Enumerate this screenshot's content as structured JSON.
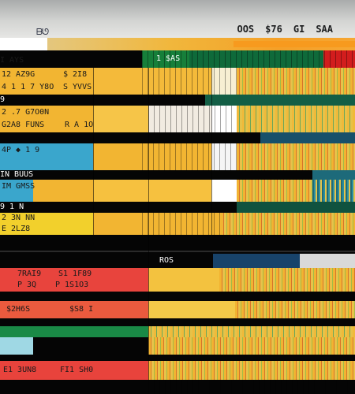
{
  "header": {
    "logo": "ᗷᘎ",
    "labels": [
      "OOS",
      "$76",
      "GI",
      "SAA"
    ]
  },
  "rows": [
    {
      "a": "1 $AS"
    },
    {
      "a": "I AYS"
    },
    {
      "a": "12 AZ9G",
      "b": "$ 2I8"
    },
    {
      "a": "4 1 1 7 Y8O",
      "b": "S YVVS"
    },
    {
      "a": "9"
    },
    {
      "a": "2 .7 G7O0N"
    },
    {
      "a": "G2A8 FUNS",
      "b": "R A 1O"
    },
    {
      "a": "4P  ◆ 1 9"
    },
    {
      "a": "IN  BUUS"
    },
    {
      "a": "IM  GMSS"
    },
    {
      "a": "9 1 N"
    },
    {
      "a": "2 3N NN"
    },
    {
      "a": "E 2LZ8"
    },
    {
      "a": "ROS"
    },
    {
      "a": "7RAI9",
      "b": "S1 1F89"
    },
    {
      "a": "P 3Q",
      "b": "P 1S1O3"
    },
    {
      "a": "$2H6S",
      "b": "$S8 I"
    },
    {
      "a": "E1 3UN8",
      "b": "FI1 SH0"
    }
  ]
}
